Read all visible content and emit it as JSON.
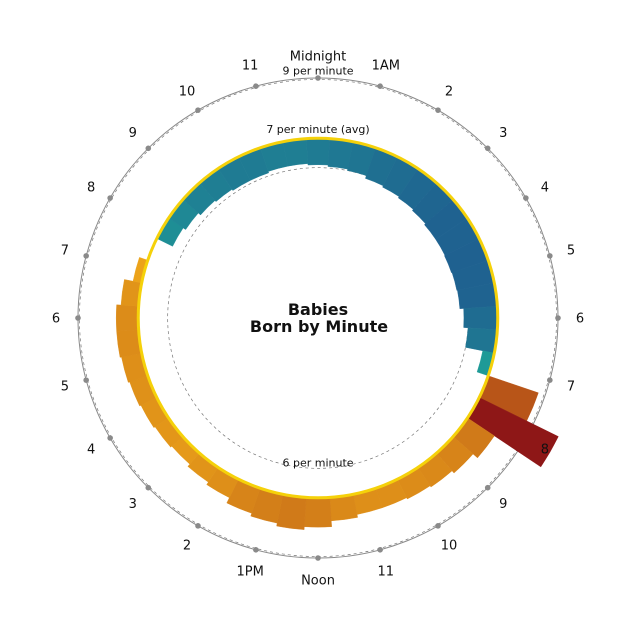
{
  "chart_data": {
    "type": "radial-area",
    "title_lines": [
      "Babies",
      "Born by Minute"
    ],
    "hour_labels": [
      "Midnight",
      "1AM",
      "2",
      "3",
      "4",
      "5",
      "6",
      "7",
      "8",
      "9",
      "10",
      "11",
      "Noon",
      "1PM",
      "2",
      "3",
      "4",
      "5",
      "6",
      "7",
      "8",
      "9",
      "10",
      "11"
    ],
    "reference_rings": [
      {
        "label": "9 per minute",
        "value": 9,
        "style": "dashed"
      },
      {
        "label": "7 per minute (avg)",
        "value": 7,
        "style": "solid-gold"
      },
      {
        "label": "6 per minute",
        "value": 6,
        "style": "dashed"
      }
    ],
    "radial_range": [
      4.9,
      10.0
    ],
    "x_unit": "hour of day",
    "y_unit": "births per minute",
    "series": [
      {
        "x": [
          0,
          0.5,
          1,
          1.5,
          2,
          2.5,
          3,
          3.5,
          4,
          4.5,
          5,
          5.5,
          6,
          6.5,
          7,
          7.5,
          8,
          8.5,
          9,
          9.5,
          10,
          10.5,
          11,
          11.5,
          12,
          12.5,
          13,
          13.5,
          14,
          14.5,
          15,
          15.5,
          16,
          16.5,
          17,
          17.5,
          18,
          18.5,
          19,
          19.5,
          20,
          20.5,
          21,
          21.5,
          22,
          22.5,
          23,
          23.5
        ],
        "values": [
          6.1,
          6.05,
          6.0,
          5.9,
          5.85,
          5.8,
          5.75,
          5.7,
          5.7,
          5.68,
          5.7,
          5.72,
          5.85,
          6.0,
          6.6,
          8.8,
          10.0,
          8.1,
          7.9,
          7.8,
          7.75,
          7.7,
          7.7,
          7.8,
          8.0,
          8.1,
          8.0,
          7.9,
          7.7,
          7.6,
          7.5,
          7.55,
          7.6,
          7.65,
          7.7,
          7.75,
          7.75,
          7.6,
          7.3,
          7.0,
          6.4,
          6.3,
          6.2,
          6.15,
          6.1,
          6.1,
          6.15,
          6.15
        ]
      }
    ]
  }
}
